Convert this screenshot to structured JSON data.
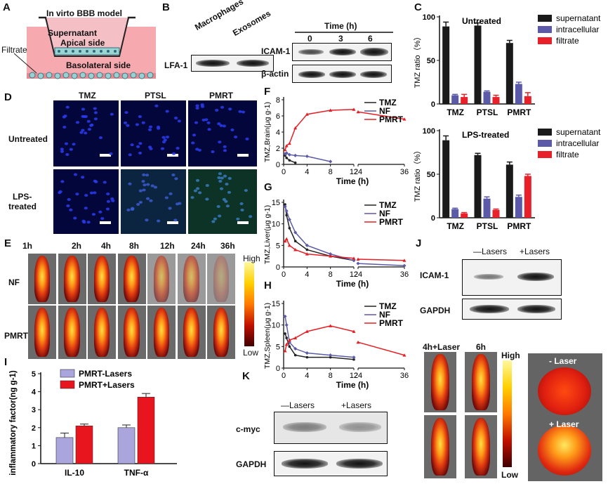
{
  "panel_labels": {
    "a": "A",
    "b": "B",
    "c": "C",
    "d": "D",
    "e": "E",
    "f": "F",
    "g": "G",
    "h": "H",
    "i": "I",
    "j": "J",
    "k": "K"
  },
  "panelA": {
    "title": "In virto BBB model",
    "supernatant": "Supernatant",
    "apical": "Apical side",
    "basolateral": "Basolateral side",
    "filtrate": "Filtrate"
  },
  "panelB": {
    "macrophages": "Macrophages",
    "exosomes": "Exosomes",
    "lfa1": "LFA-1",
    "time_title": "Time (h)",
    "times": [
      "0",
      "3",
      "6"
    ],
    "icam1": "ICAM-1",
    "actin": "β-actin"
  },
  "panelD": {
    "cols": [
      "TMZ",
      "PTSL",
      "PMRT"
    ],
    "row1": "Untreated",
    "row2a": "LPS-",
    "row2b": "treated"
  },
  "panelE": {
    "times": [
      "1h",
      "2h",
      "4h",
      "8h",
      "12h",
      "24h",
      "36h"
    ],
    "row1": "NF",
    "row2": "PMRT",
    "scale_high": "High",
    "scale_low": "Low"
  },
  "panelJ": {
    "minus": "—Lasers",
    "plus": "+Lasers",
    "icam1": "ICAM-1",
    "gapdh": "GAPDH",
    "col1": "4h+Laser",
    "col2": "6h",
    "scale_high": "High",
    "scale_low": "Low",
    "minus_laser": "- Laser",
    "plus_laser": "+ Laser"
  },
  "panelK": {
    "minus": "—Lasers",
    "plus": "+Lasers",
    "cmyc": "c-myc",
    "gapdh": "GAPDH"
  },
  "colors": {
    "supernatant": "#1a1a1a",
    "intracellular": "#5a5aa8",
    "filtrate": "#e8202a",
    "tmz": "#222222",
    "nf": "#5c5ca6",
    "pmrt": "#e42026",
    "lavender": "#aaa6dd",
    "red": "#e8141e"
  },
  "chart_data": [
    {
      "id": "C_untreated",
      "type": "bar",
      "title": "Untreated",
      "ylabel": "TMZ ratio（%）",
      "ylim": [
        0,
        100
      ],
      "yticks": [
        0,
        50,
        100
      ],
      "categories": [
        "TMZ",
        "PTSL",
        "PMRT"
      ],
      "series": [
        {
          "name": "supernatant",
          "values": [
            89,
            90,
            70
          ],
          "errors": [
            5,
            3,
            3
          ]
        },
        {
          "name": "intracellular",
          "values": [
            10,
            14,
            23
          ],
          "errors": [
            1,
            1,
            2
          ]
        },
        {
          "name": "filtrate",
          "values": [
            8,
            8,
            9
          ],
          "errors": [
            3,
            2,
            4
          ]
        }
      ]
    },
    {
      "id": "C_lps",
      "type": "bar",
      "title": "LPS-treated",
      "ylabel": "TMZ ratio（%）",
      "ylim": [
        0,
        100
      ],
      "yticks": [
        0,
        50,
        100
      ],
      "categories": [
        "TMZ",
        "PTSL",
        "PMRT"
      ],
      "series": [
        {
          "name": "supernatant",
          "values": [
            89,
            72,
            61
          ],
          "errors": [
            5,
            2,
            3
          ]
        },
        {
          "name": "intracellular",
          "values": [
            10,
            22,
            24
          ],
          "errors": [
            1,
            2,
            2
          ]
        },
        {
          "name": "filtrate",
          "values": [
            5,
            9,
            48
          ],
          "errors": [
            1,
            1,
            2
          ]
        }
      ]
    },
    {
      "id": "F",
      "type": "line",
      "ylabel": "TMZ,Brain(μg g-1)",
      "xlabel": "Time (h)",
      "ylim": [
        0,
        8
      ],
      "yticks": [
        0,
        2,
        4,
        6,
        8
      ],
      "xticks_left": [
        0,
        4,
        8,
        12
      ],
      "xticks_right": [
        24,
        36
      ],
      "series": [
        {
          "name": "TMZ",
          "x": [
            0.25,
            0.5,
            1,
            2
          ],
          "y": [
            1.1,
            0.8,
            0.5,
            0.2
          ]
        },
        {
          "name": "NF",
          "x": [
            0.25,
            0.5,
            1,
            2,
            4,
            8
          ],
          "y": [
            1.3,
            1.4,
            1.2,
            1.1,
            1.0,
            0.35
          ]
        },
        {
          "name": "PMRT",
          "x": [
            0.25,
            0.5,
            1,
            2,
            4,
            8,
            12,
            24,
            36
          ],
          "y": [
            1.8,
            2.3,
            2.6,
            4.5,
            6.2,
            6.7,
            6.8,
            6.5,
            5.6
          ]
        }
      ]
    },
    {
      "id": "G",
      "type": "line",
      "ylabel": "TMZ,Liver(μg g-1)",
      "xlabel": "Time (h)",
      "ylim": [
        0,
        15
      ],
      "yticks": [
        0,
        5,
        10,
        15
      ],
      "xticks_left": [
        0,
        4,
        8,
        12
      ],
      "xticks_right": [
        24,
        36
      ],
      "series": [
        {
          "name": "TMZ",
          "x": [
            0.25,
            0.5,
            1,
            2,
            4,
            8,
            12
          ],
          "y": [
            14.5,
            12,
            9,
            6,
            4,
            2.5,
            1.5
          ]
        },
        {
          "name": "NF",
          "x": [
            0.25,
            0.5,
            1,
            2,
            4,
            8,
            12,
            24,
            36
          ],
          "y": [
            14,
            13,
            11,
            8,
            5,
            3,
            1.5,
            0.8,
            0.3
          ]
        },
        {
          "name": "PMRT",
          "x": [
            0.25,
            0.5,
            1,
            2,
            4,
            8,
            12,
            24,
            36
          ],
          "y": [
            6,
            6.5,
            5,
            4,
            3,
            2.5,
            2,
            1.8,
            1.5
          ]
        }
      ]
    },
    {
      "id": "H",
      "type": "line",
      "ylabel": "TMZ,Spleen(μg g-1)",
      "xlabel": "Time (h)",
      "ylim": [
        0,
        15
      ],
      "yticks": [
        0,
        5,
        10,
        15
      ],
      "xticks_left": [
        0,
        4,
        8,
        12
      ],
      "xticks_right": [
        24,
        36
      ],
      "series": [
        {
          "name": "TMZ",
          "x": [
            0.25,
            0.5,
            1,
            2,
            4,
            8,
            12
          ],
          "y": [
            8,
            7,
            5,
            3,
            2.5,
            2.5,
            2
          ]
        },
        {
          "name": "NF",
          "x": [
            0.25,
            0.5,
            1,
            2,
            4,
            8,
            12
          ],
          "y": [
            12,
            10,
            6,
            4.5,
            3.5,
            3,
            2.5
          ]
        },
        {
          "name": "PMRT",
          "x": [
            0.25,
            0.5,
            1,
            2,
            4,
            8,
            12,
            24,
            36
          ],
          "y": [
            4,
            5.5,
            6.5,
            7,
            8.5,
            9.8,
            8.5,
            6,
            3
          ]
        }
      ]
    },
    {
      "id": "I",
      "type": "bar",
      "ylabel": "inflammatory factor(ng g-1)",
      "ylim": [
        0,
        5
      ],
      "yticks": [
        0,
        1,
        2,
        3,
        4,
        5
      ],
      "categories": [
        "IL-10",
        "TNF-α"
      ],
      "series": [
        {
          "name": "PMRT-Lasers",
          "values": [
            1.45,
            2.0
          ],
          "errors": [
            0.25,
            0.15
          ]
        },
        {
          "name": "PMRT+Lasers",
          "values": [
            2.1,
            3.7
          ],
          "errors": [
            0.1,
            0.2
          ]
        }
      ]
    }
  ]
}
